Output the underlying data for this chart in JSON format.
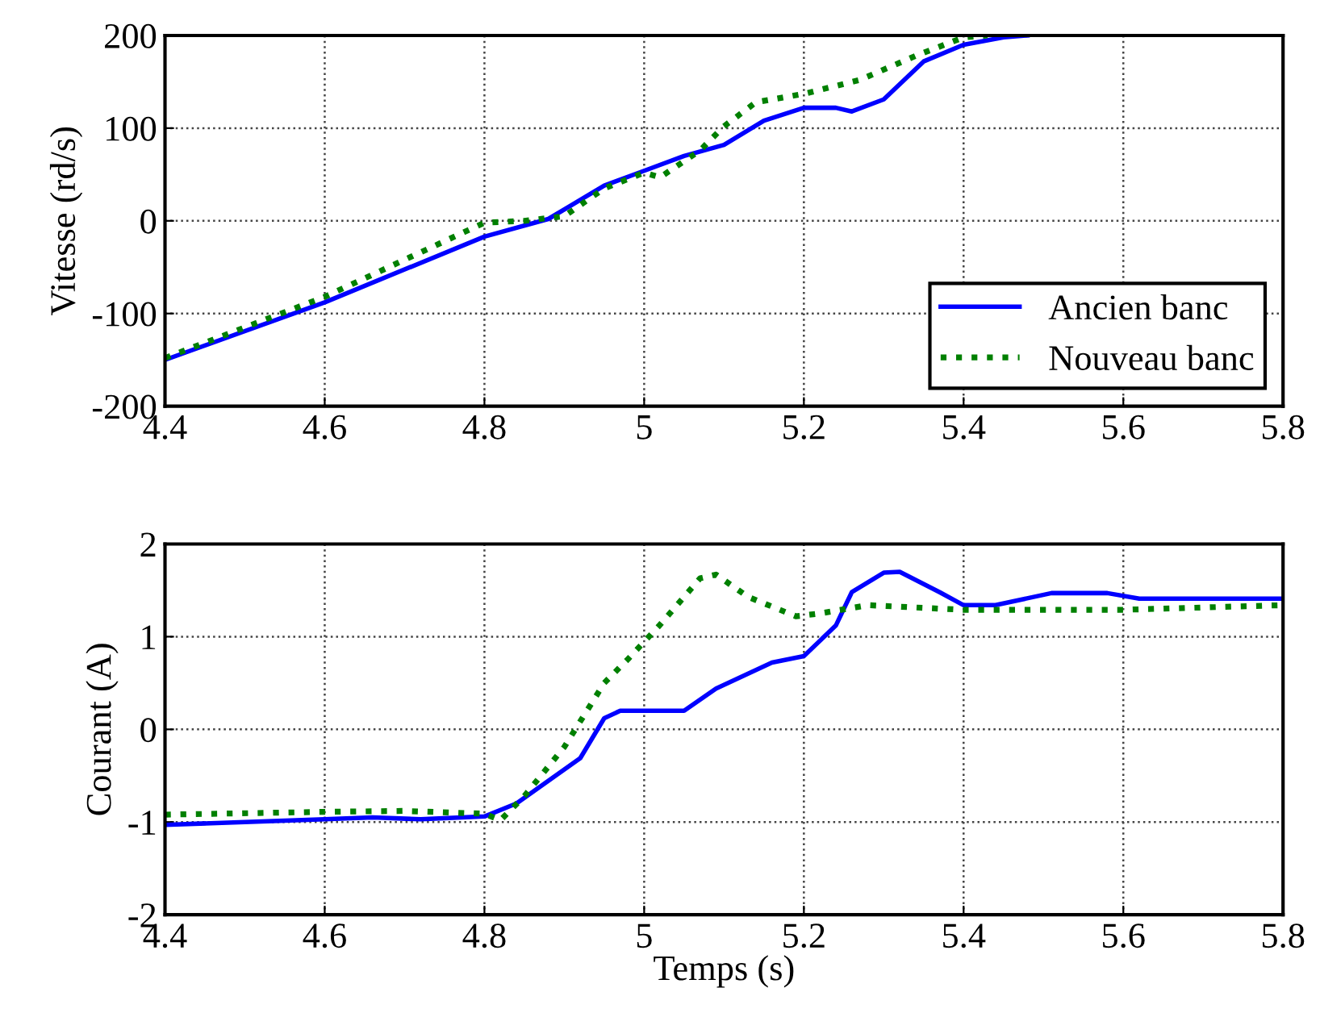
{
  "chart_data": [
    {
      "type": "line",
      "ylabel": "Vitesse (rd/s)",
      "xlim": [
        4.4,
        5.8
      ],
      "xticks": [
        4.4,
        4.6,
        4.8,
        5,
        5.2,
        5.4,
        5.6,
        5.8
      ],
      "ylim": [
        -200,
        200
      ],
      "yticks": [
        -200,
        -100,
        0,
        100,
        200
      ],
      "grid": true,
      "legend": "bottom right",
      "series": [
        {
          "name": "Ancien banc",
          "color": "#0000ff",
          "line_style": "solid",
          "x": [
            4.4,
            4.6,
            4.8,
            4.88,
            4.95,
            5.0,
            5.05,
            5.1,
            5.15,
            5.2,
            5.24,
            5.26,
            5.3,
            5.35,
            5.4,
            5.45,
            5.48
          ],
          "values": [
            -150,
            -88,
            -17,
            2,
            38,
            54,
            70,
            82,
            108,
            122,
            122,
            118,
            131,
            172,
            190,
            198,
            200
          ]
        },
        {
          "name": "Nouveau banc",
          "color": "#008000",
          "line_style": "dotted",
          "x": [
            4.4,
            4.6,
            4.8,
            4.85,
            4.9,
            4.95,
            5.0,
            5.02,
            5.07,
            5.1,
            5.14,
            5.2,
            5.27,
            5.34,
            5.4,
            5.43
          ],
          "values": [
            -148,
            -82,
            -2,
            0,
            5,
            35,
            52,
            47,
            76,
            102,
            128,
            137,
            152,
            178,
            198,
            200
          ]
        }
      ]
    },
    {
      "type": "line",
      "xlabel": "Temps (s)",
      "ylabel": "Courant (A)",
      "xlim": [
        4.4,
        5.8
      ],
      "xticks": [
        4.4,
        4.6,
        4.8,
        5,
        5.2,
        5.4,
        5.6,
        5.8
      ],
      "ylim": [
        -2,
        2
      ],
      "yticks": [
        -2,
        -1,
        0,
        1,
        2
      ],
      "grid": true,
      "series": [
        {
          "color": "#0000ff",
          "line_style": "solid",
          "x": [
            4.4,
            4.5,
            4.6,
            4.66,
            4.72,
            4.8,
            4.84,
            4.92,
            4.95,
            4.97,
            5.05,
            5.09,
            5.16,
            5.2,
            5.24,
            5.26,
            5.3,
            5.32,
            5.37,
            5.4,
            5.44,
            5.51,
            5.58,
            5.62,
            5.8
          ],
          "values": [
            -1.03,
            -1.0,
            -0.97,
            -0.95,
            -0.97,
            -0.94,
            -0.8,
            -0.31,
            0.12,
            0.2,
            0.2,
            0.44,
            0.72,
            0.79,
            1.12,
            1.48,
            1.69,
            1.7,
            1.48,
            1.34,
            1.34,
            1.47,
            1.47,
            1.41,
            1.41
          ]
        },
        {
          "color": "#008000",
          "line_style": "dotted",
          "x": [
            4.4,
            4.6,
            4.7,
            4.8,
            4.82,
            4.85,
            4.9,
            4.95,
            4.98,
            5.02,
            5.07,
            5.09,
            5.13,
            5.19,
            5.22,
            5.28,
            5.4,
            5.6,
            5.8
          ],
          "values": [
            -0.92,
            -0.89,
            -0.88,
            -0.91,
            -0.98,
            -0.72,
            -0.19,
            0.5,
            0.76,
            1.13,
            1.63,
            1.67,
            1.43,
            1.22,
            1.25,
            1.34,
            1.29,
            1.29,
            1.34
          ]
        }
      ]
    }
  ]
}
